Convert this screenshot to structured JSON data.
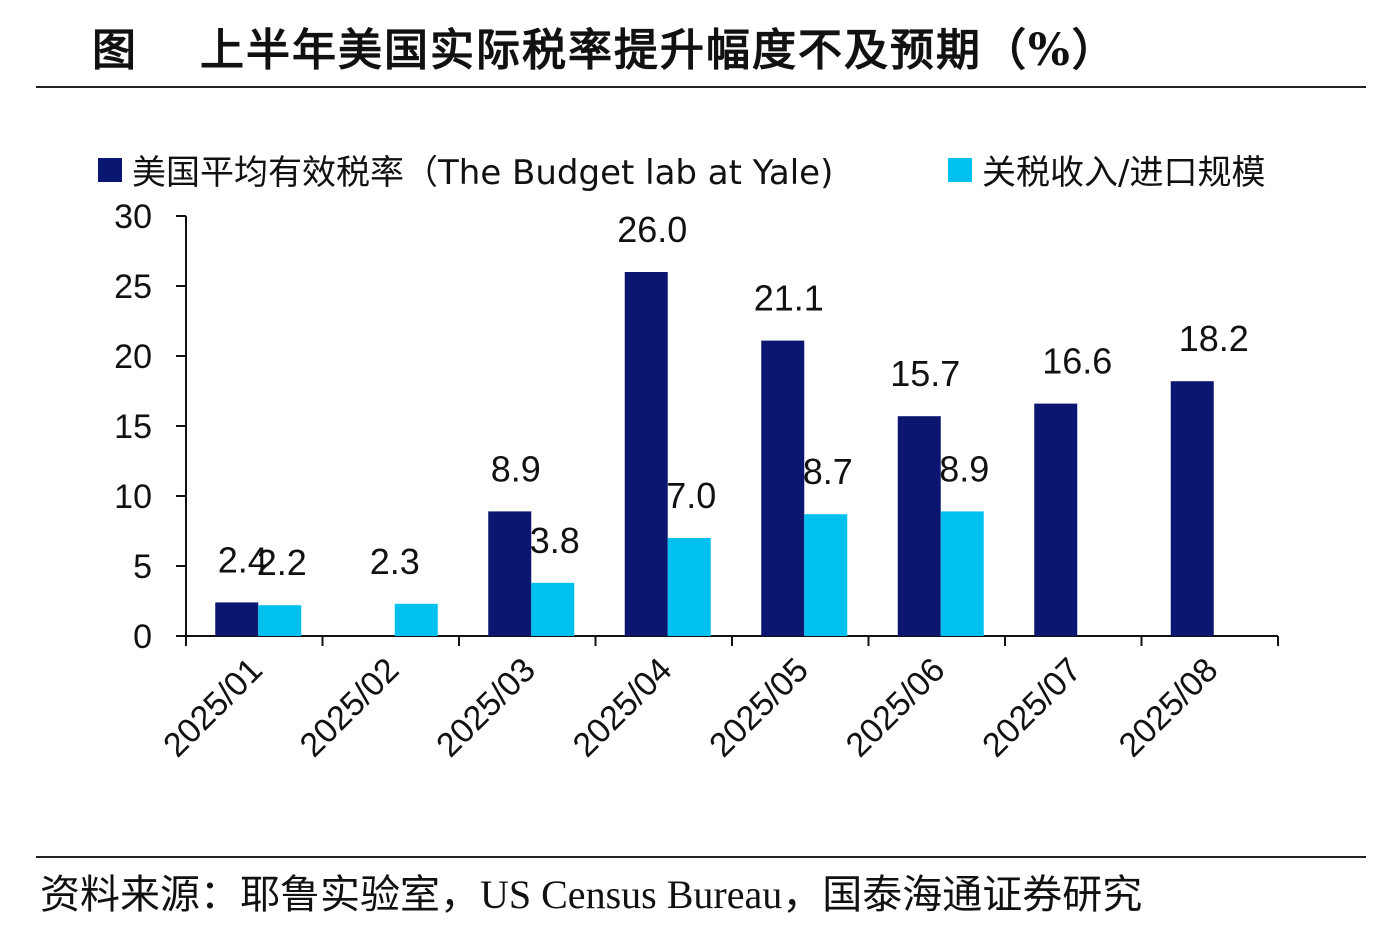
{
  "header": {
    "figure_label": "图",
    "title": "上半年美国实际税率提升幅度不及预期（%）"
  },
  "footer": {
    "source": "资料来源：耶鲁实验室，US Census Bureau，国泰海通证券研究"
  },
  "chart_data": {
    "type": "bar",
    "title": "上半年美国实际税率提升幅度不及预期（%）",
    "xlabel": "",
    "ylabel": "",
    "ylim": [
      0,
      30
    ],
    "yticks": [
      "0",
      "5",
      "10",
      "15",
      "20",
      "25",
      "30"
    ],
    "grid": false,
    "legend_position": "top",
    "categories": [
      "2025/01",
      "2025/02",
      "2025/03",
      "2025/04",
      "2025/05",
      "2025/06",
      "2025/07",
      "2025/08"
    ],
    "series": [
      {
        "name": "美国平均有效税率（The Budget lab at Yale)",
        "color": "#0b1670",
        "values": [
          2.4,
          null,
          8.9,
          26.0,
          21.1,
          15.7,
          16.6,
          18.2
        ],
        "labels": [
          "2.4",
          "",
          "8.9",
          "26.0",
          "21.1",
          "15.7",
          "16.6",
          "18.2"
        ]
      },
      {
        "name": "关税收入/进口规模",
        "color": "#00c0f0",
        "values": [
          2.2,
          2.3,
          3.8,
          7.0,
          8.7,
          8.9,
          null,
          null
        ],
        "labels": [
          "2.2",
          "2.3",
          "3.8",
          "7.0",
          "8.7",
          "8.9",
          "",
          ""
        ]
      }
    ]
  }
}
